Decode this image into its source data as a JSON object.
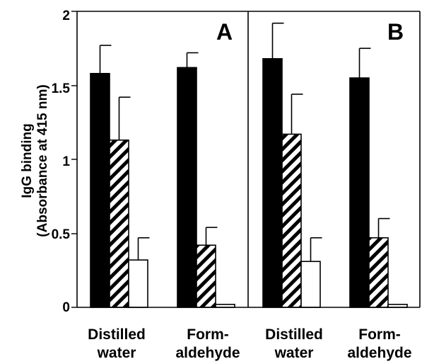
{
  "chart_data": [
    {
      "type": "bar",
      "panel_label": "A",
      "categories": [
        "Distilled water",
        "Form-aldehyde"
      ],
      "category_labels": [
        [
          "Distilled",
          "water"
        ],
        [
          "Form-",
          "aldehyde"
        ]
      ],
      "series": [
        {
          "pattern": "solid",
          "color": "#000000",
          "values": [
            1.58,
            1.62
          ],
          "errors": [
            0.19,
            0.1
          ]
        },
        {
          "pattern": "hatched",
          "color": "#000000",
          "values": [
            1.13,
            0.42
          ],
          "errors": [
            0.29,
            0.12
          ]
        },
        {
          "pattern": "open",
          "color": "#ffffff",
          "values": [
            0.32,
            0.02
          ],
          "errors": [
            0.15,
            0.0
          ]
        }
      ],
      "ylabel_lines": [
        "IgG binding",
        "(Absorbance at 415 nm)"
      ],
      "ylim": [
        0,
        2
      ],
      "yticks": [
        0,
        0.5,
        1,
        1.5,
        2
      ],
      "ytick_labels": [
        "0",
        "0.5",
        "1",
        "1.5",
        "2"
      ],
      "grid": false,
      "legend": "none"
    },
    {
      "type": "bar",
      "panel_label": "B",
      "categories": [
        "Distilled water",
        "Form-aldehyde"
      ],
      "category_labels": [
        [
          "Distilled",
          "water"
        ],
        [
          "Form-",
          "aldehyde"
        ]
      ],
      "series": [
        {
          "pattern": "solid",
          "color": "#000000",
          "values": [
            1.68,
            1.55
          ],
          "errors": [
            0.24,
            0.2
          ]
        },
        {
          "pattern": "hatched",
          "color": "#000000",
          "values": [
            1.17,
            0.47
          ],
          "errors": [
            0.27,
            0.13
          ]
        },
        {
          "pattern": "open",
          "color": "#ffffff",
          "values": [
            0.31,
            0.02
          ],
          "errors": [
            0.16,
            0.0
          ]
        }
      ],
      "ylim": [
        0,
        2
      ],
      "grid": false,
      "legend": "none"
    }
  ]
}
